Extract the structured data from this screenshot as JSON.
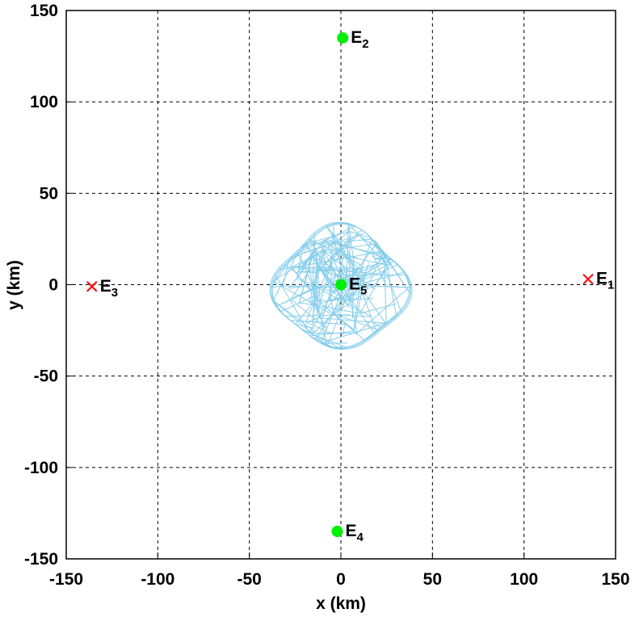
{
  "chart_data": {
    "type": "scatter",
    "xlabel": "x (km)",
    "ylabel": "y (km)",
    "xlim": [
      -150,
      150
    ],
    "ylim": [
      -150,
      150
    ],
    "xticks": [
      -150,
      -100,
      -50,
      0,
      50,
      100,
      150
    ],
    "yticks": [
      -150,
      -100,
      -50,
      0,
      50,
      100,
      150
    ],
    "grid": true,
    "body_color": "#87ceeb",
    "points": [
      {
        "label": "E",
        "subscript": "1",
        "x": 135,
        "y": 3,
        "marker": "x",
        "color": "#ff0000"
      },
      {
        "label": "E",
        "subscript": "2",
        "x": 1,
        "y": 135,
        "marker": "circle",
        "color": "#00ee00"
      },
      {
        "label": "E",
        "subscript": "3",
        "x": -136,
        "y": -1,
        "marker": "x",
        "color": "#ff0000"
      },
      {
        "label": "E",
        "subscript": "4",
        "x": -2,
        "y": -135,
        "marker": "circle",
        "color": "#00ee00"
      },
      {
        "label": "E",
        "subscript": "5",
        "x": 0,
        "y": 0,
        "marker": "circle",
        "color": "#00ee00"
      }
    ]
  }
}
